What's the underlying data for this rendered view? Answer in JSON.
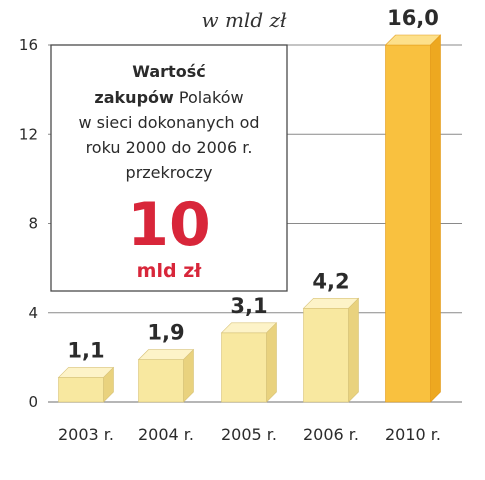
{
  "unit_title": "w mld zł",
  "infobox": {
    "line1_bold": "Wartość",
    "line2_bold": "zakupów",
    "line2_rest": " Polaków",
    "line3": "w sieci dokonanych od",
    "line4": "roku 2000 do 2006 r.",
    "line5": "przekroczy",
    "big_number": "10",
    "big_unit": "mld zł"
  },
  "colors": {
    "bar_front": "#f8e8a0",
    "bar_top": "#fdf3c8",
    "bar_side": "#e9d27e",
    "highlight_front": "#f9c13f",
    "highlight_top": "#fde08a",
    "highlight_side": "#eda820",
    "accent_red": "#d8263a",
    "grid": "#8a8a8a"
  },
  "chart_data": {
    "type": "bar",
    "title": "w mld zł",
    "categories": [
      "2003 r.",
      "2004 r.",
      "2005 r.",
      "2006 r.",
      "2010 r."
    ],
    "values": [
      1.1,
      1.9,
      3.1,
      4.2,
      16.0
    ],
    "value_labels": [
      "1,1",
      "1,9",
      "3,1",
      "4,2",
      "16,0"
    ],
    "highlight_index": 4,
    "yticks": [
      0,
      4,
      8,
      12,
      16
    ],
    "ylim": [
      0,
      16
    ],
    "grid": true,
    "xlabel": "",
    "ylabel": ""
  }
}
